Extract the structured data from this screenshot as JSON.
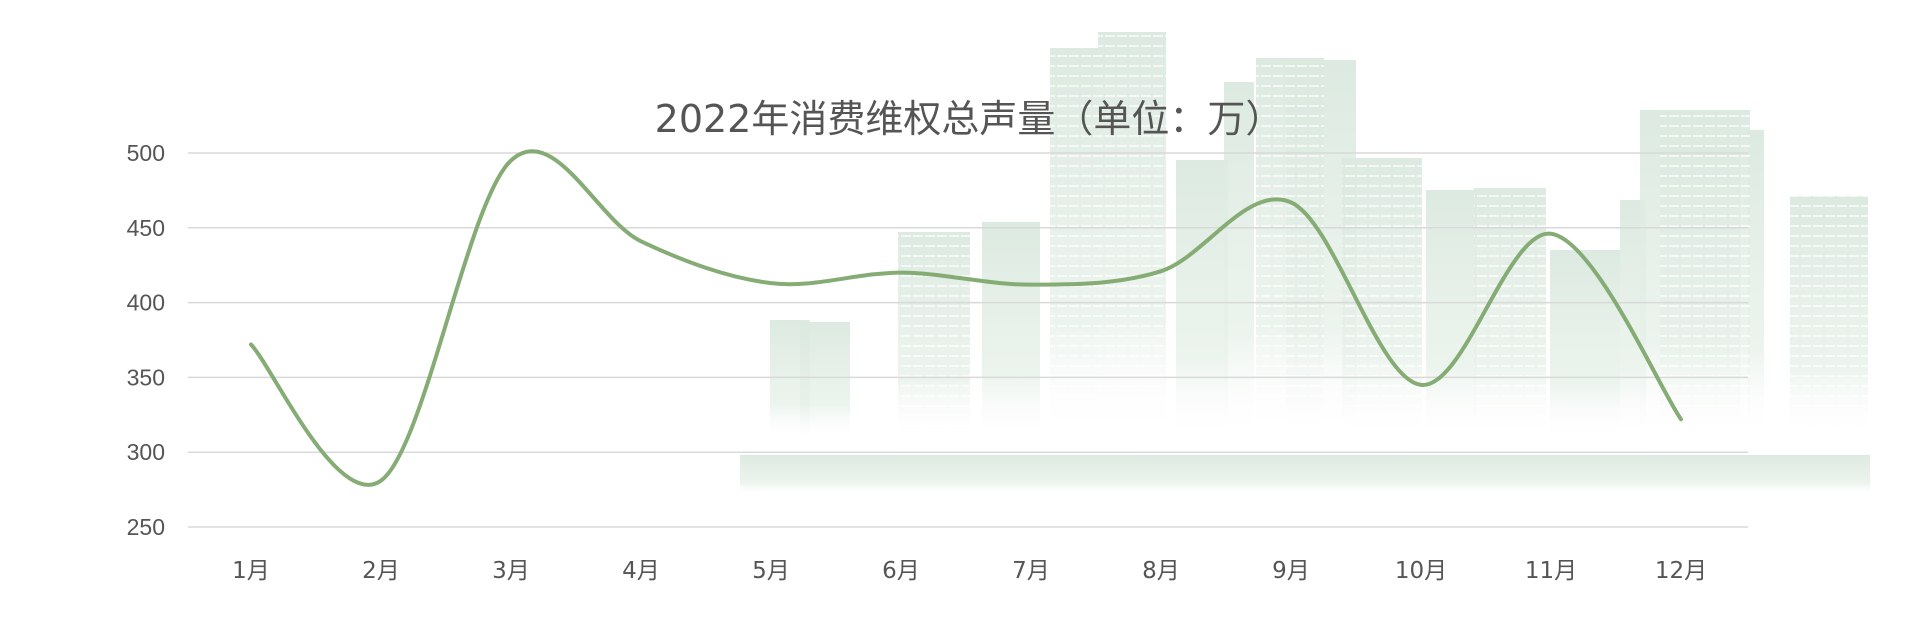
{
  "chart_data": {
    "type": "line",
    "title": "2022年消费维权总声量（单位：万）",
    "xlabel": "",
    "ylabel": "",
    "categories": [
      "1月",
      "2月",
      "3月",
      "4月",
      "5月",
      "6月",
      "7月",
      "8月",
      "9月",
      "10月",
      "11月",
      "12月"
    ],
    "series": [
      {
        "values": [
          372,
          281,
          495,
          441,
          413,
          420,
          412,
          421,
          467,
          345,
          446,
          322
        ]
      }
    ],
    "yticks": [
      250,
      300,
      350,
      400,
      450,
      500
    ],
    "ylim": [
      250,
      500
    ],
    "grid": true,
    "legend": "none",
    "smooth": true,
    "colors": {
      "line": "#86ac76",
      "grid": "#d9d9d9",
      "text": "#555555",
      "background_buildings": "#dbe9df"
    }
  }
}
